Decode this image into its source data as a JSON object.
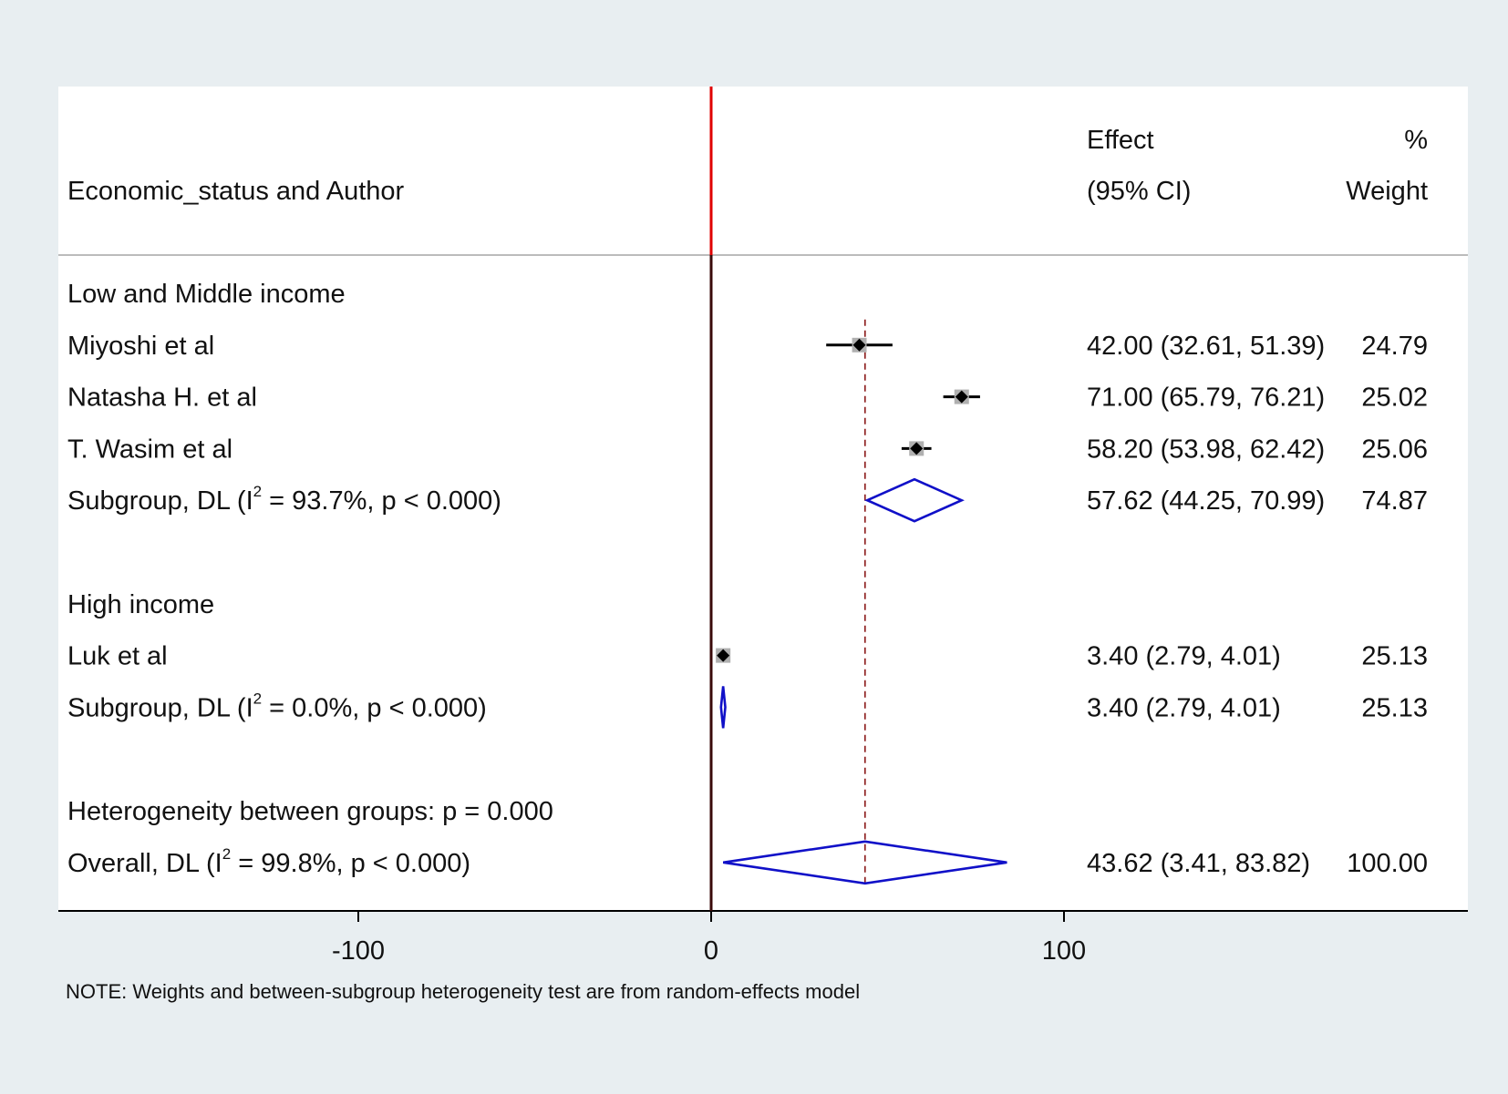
{
  "chart_data": {
    "type": "forest",
    "header": {
      "label_col": "Economic_status and Author",
      "effect_line1": "Effect",
      "effect_line2": "(95% CI)",
      "weight_line1": "%",
      "weight_line2": "Weight"
    },
    "rows": [
      {
        "kind": "group",
        "label": "Low and Middle income"
      },
      {
        "kind": "study",
        "label": "Miyoshi et al",
        "est": 42.0,
        "lo": 32.61,
        "hi": 51.39,
        "weight": 24.79,
        "effect_text": "42.00 (32.61, 51.39)",
        "weight_text": "24.79"
      },
      {
        "kind": "study",
        "label": "Natasha H. et al",
        "est": 71.0,
        "lo": 65.79,
        "hi": 76.21,
        "weight": 25.02,
        "effect_text": "71.00 (65.79, 76.21)",
        "weight_text": "25.02"
      },
      {
        "kind": "study",
        "label": "T. Wasim et al",
        "est": 58.2,
        "lo": 53.98,
        "hi": 62.42,
        "weight": 25.06,
        "effect_text": "58.20 (53.98, 62.42)",
        "weight_text": "25.06"
      },
      {
        "kind": "subgroup",
        "label_pre": "Subgroup, DL (I",
        "label_sup": "2",
        "label_post": " = 93.7%, p < 0.000)",
        "est": 57.62,
        "lo": 44.25,
        "hi": 70.99,
        "weight": 74.87,
        "effect_text": "57.62 (44.25, 70.99)",
        "weight_text": "74.87"
      },
      {
        "kind": "blank"
      },
      {
        "kind": "group",
        "label": "High income"
      },
      {
        "kind": "study",
        "label": "Luk et al",
        "est": 3.4,
        "lo": 2.79,
        "hi": 4.01,
        "weight": 25.13,
        "effect_text": "3.40 (2.79, 4.01)",
        "weight_text": "25.13"
      },
      {
        "kind": "subgroup",
        "label_pre": "Subgroup, DL (I",
        "label_sup": "2",
        "label_post": " = 0.0%, p < 0.000)",
        "est": 3.4,
        "lo": 2.79,
        "hi": 4.01,
        "weight": 25.13,
        "effect_text": "3.40 (2.79, 4.01)",
        "weight_text": "25.13"
      },
      {
        "kind": "blank"
      },
      {
        "kind": "text",
        "label": "Heterogeneity between groups: p = 0.000"
      },
      {
        "kind": "overall",
        "label_pre": "Overall, DL (I",
        "label_sup": "2",
        "label_post": " = 99.8%, p < 0.000)",
        "est": 43.62,
        "lo": 3.41,
        "hi": 83.82,
        "weight": 100.0,
        "effect_text": "43.62 (3.41, 83.82)",
        "weight_text": "100.00"
      }
    ],
    "xaxis": {
      "ticks": [
        -100,
        0,
        100
      ],
      "tick_labels": [
        "-100",
        "0",
        "100"
      ],
      "range": [
        -184,
        214
      ]
    },
    "null_line": 0,
    "overall_line": 43.62,
    "note": "NOTE: Weights and between-subgroup heterogeneity test are from random-effects model",
    "colors": {
      "null_line_header": "#e00000",
      "null_line_body": "#3a0a0a",
      "diamond": "#1010c8",
      "overall_line": "#8b1a1a",
      "box": "#b0b0b0",
      "point": "#000000"
    }
  }
}
